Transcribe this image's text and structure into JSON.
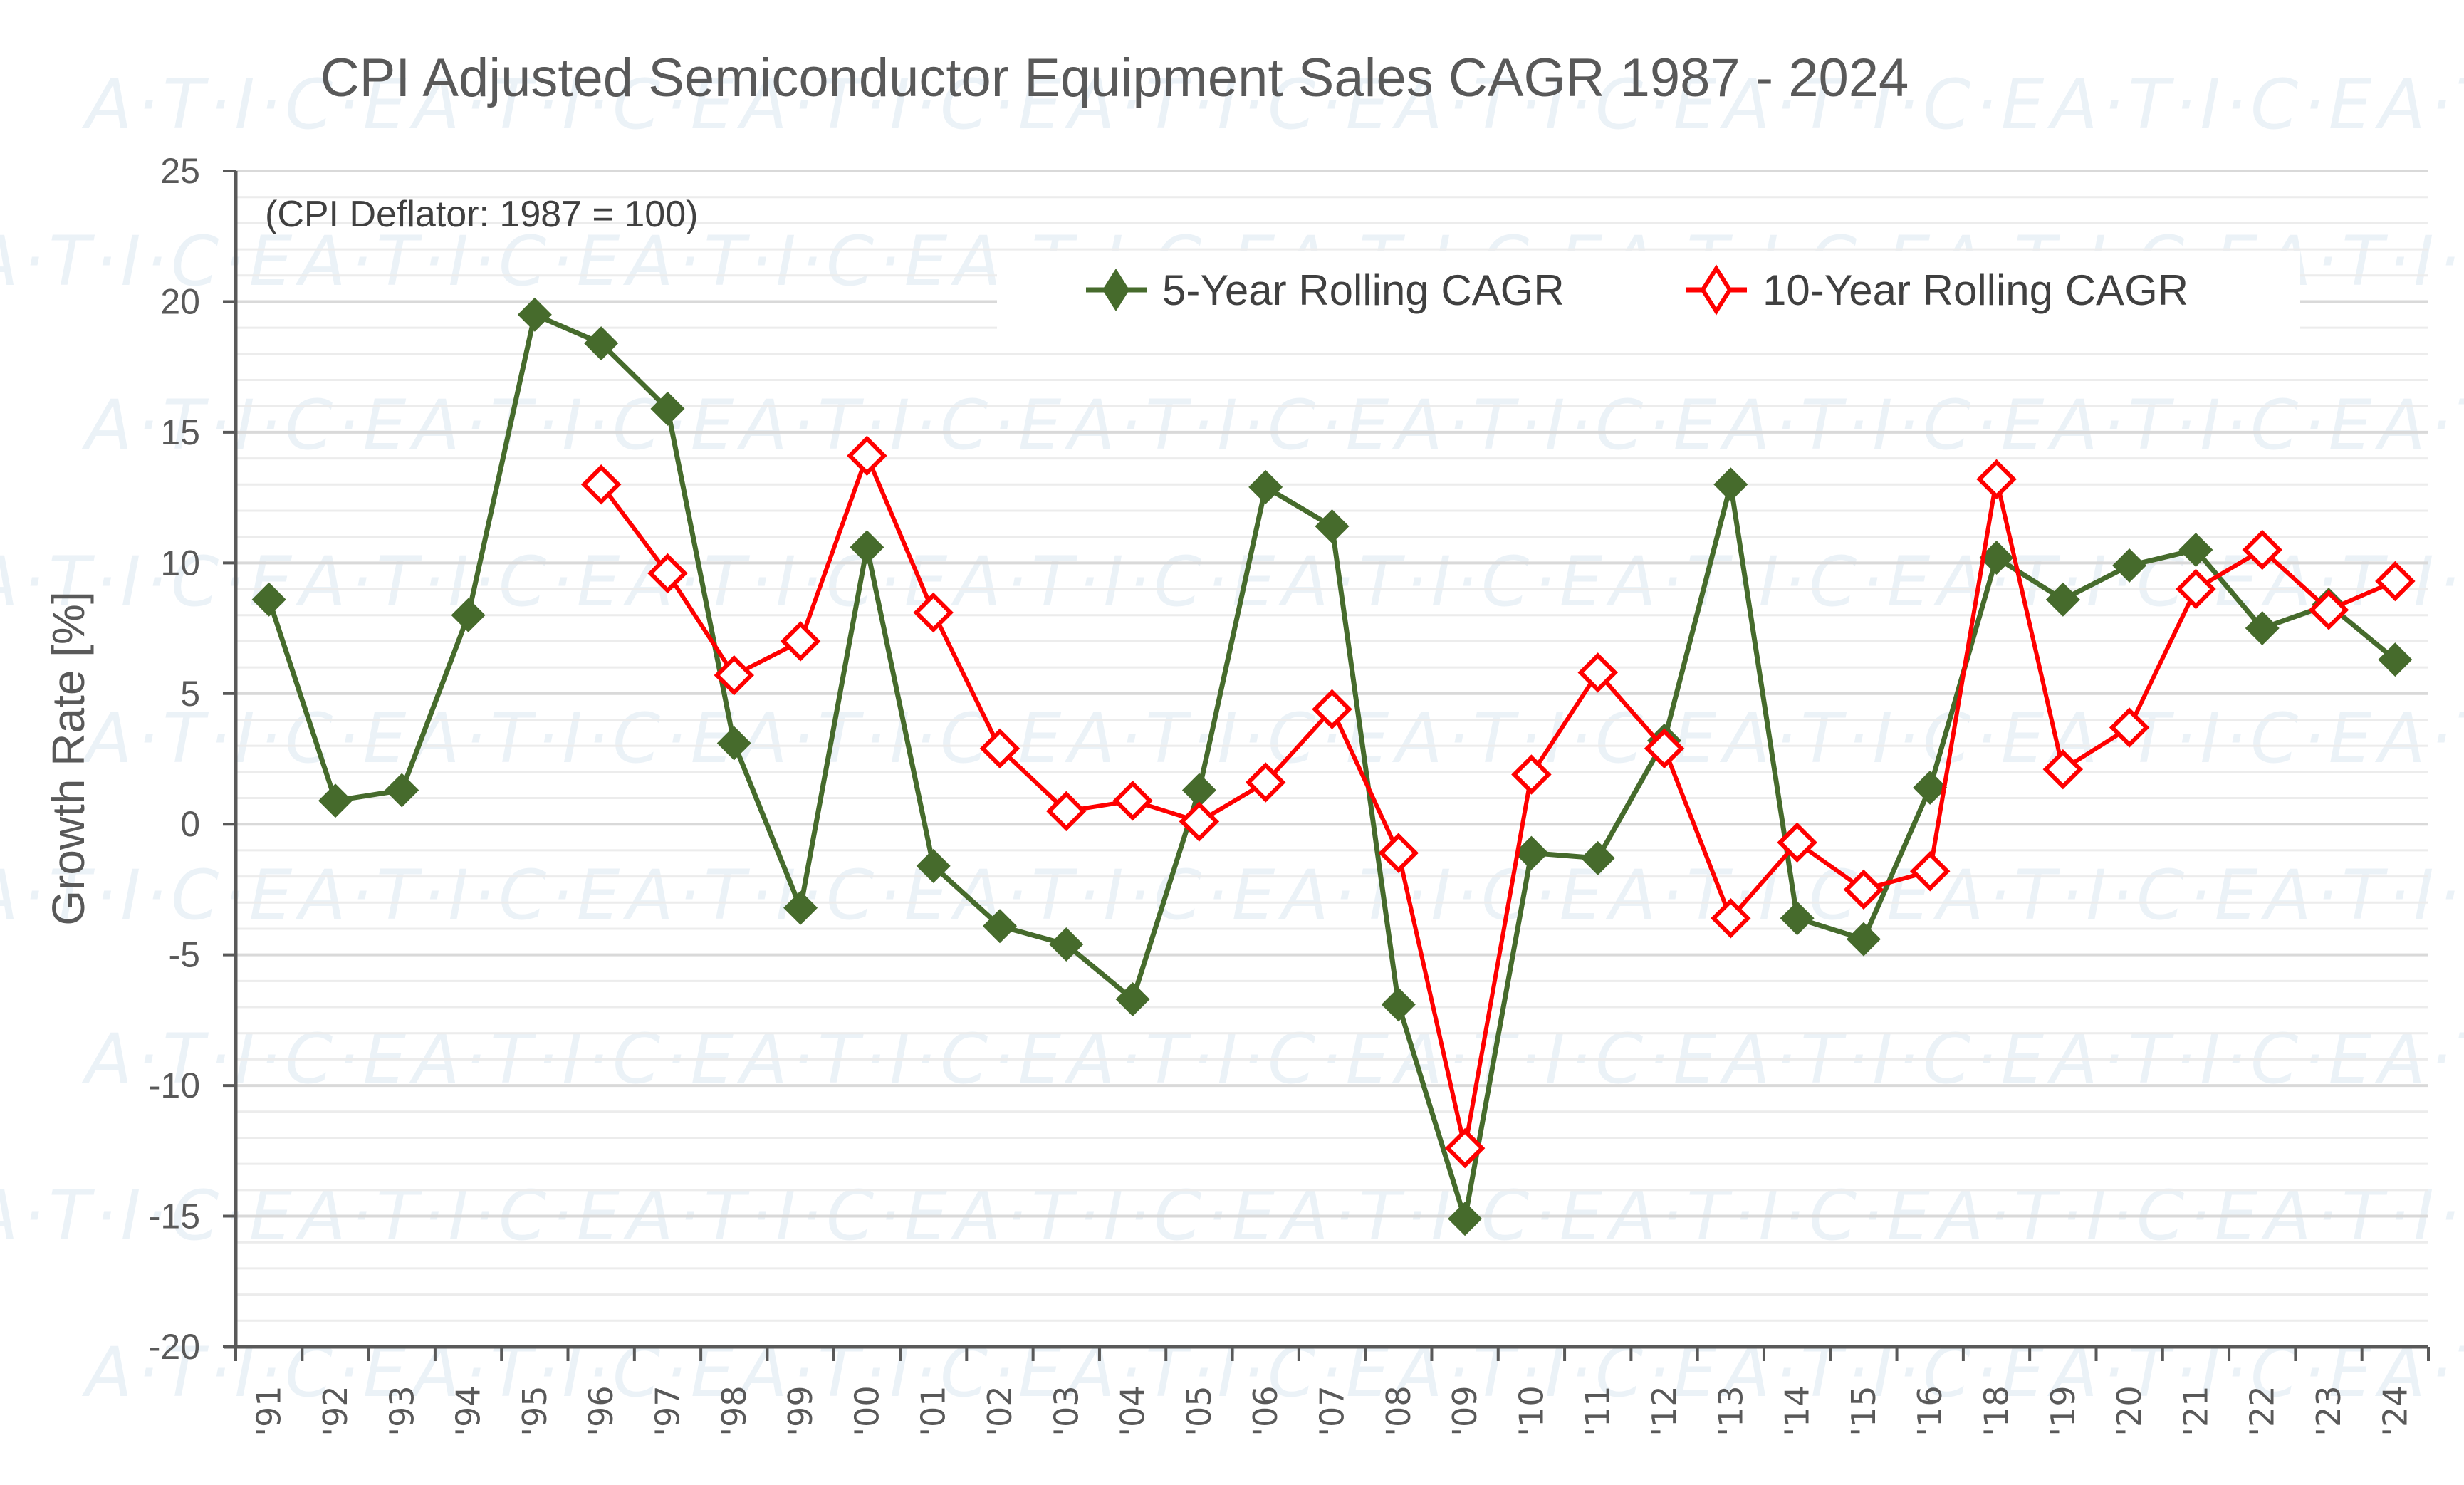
{
  "chart_data": {
    "type": "line",
    "title": "CPI Adjusted Semiconductor Equipment Sales CAGR 1987 - 2024",
    "annotation": "(CPI Deflator:  1987 = 100)",
    "xlabel": "",
    "ylabel": "Growth Rate [%]",
    "ylim": [
      -20,
      25
    ],
    "yticks": [
      25,
      20,
      15,
      10,
      5,
      0,
      -5,
      -10,
      -15,
      -20
    ],
    "minor_grid_step": 1,
    "grid": true,
    "legend_position": "top-right",
    "watermark": "A·T·I·C·E",
    "categories": [
      "'91",
      "'92",
      "'93",
      "'94",
      "'95",
      "'96",
      "'97",
      "'98",
      "'99",
      "'00",
      "'01",
      "'02",
      "'03",
      "'04",
      "'05",
      "'06",
      "'07",
      "'08",
      "'09",
      "'10",
      "'11",
      "'12",
      "'13",
      "'14",
      "'15",
      "'16",
      "'18",
      "'19",
      "'20",
      "'21",
      "'22",
      "'23",
      "'24"
    ],
    "series": [
      {
        "name": "5-Year Rolling CAGR",
        "color": "#466b2c",
        "marker": "diamond-filled",
        "values": [
          8.6,
          0.9,
          1.3,
          8.0,
          19.5,
          18.4,
          15.9,
          3.1,
          -3.2,
          10.6,
          -1.6,
          -3.9,
          -4.6,
          -6.7,
          1.3,
          12.9,
          11.4,
          -6.9,
          -15.1,
          -1.1,
          -1.3,
          3.2,
          13.0,
          -3.6,
          -4.4,
          1.4,
          10.2,
          8.6,
          9.9,
          10.5,
          7.5,
          8.4,
          6.3
        ]
      },
      {
        "name": "10-Year Rolling CAGR",
        "color": "#ff0000",
        "marker": "diamond-open",
        "values": [
          null,
          null,
          null,
          null,
          null,
          13.0,
          9.6,
          5.7,
          7.0,
          14.1,
          8.1,
          2.9,
          0.5,
          0.9,
          0.1,
          1.6,
          4.4,
          -1.1,
          -12.4,
          1.9,
          5.8,
          2.9,
          -3.6,
          -0.7,
          -2.5,
          -1.8,
          13.2,
          2.1,
          3.7,
          9.0,
          10.5,
          8.2,
          9.3
        ]
      }
    ]
  }
}
